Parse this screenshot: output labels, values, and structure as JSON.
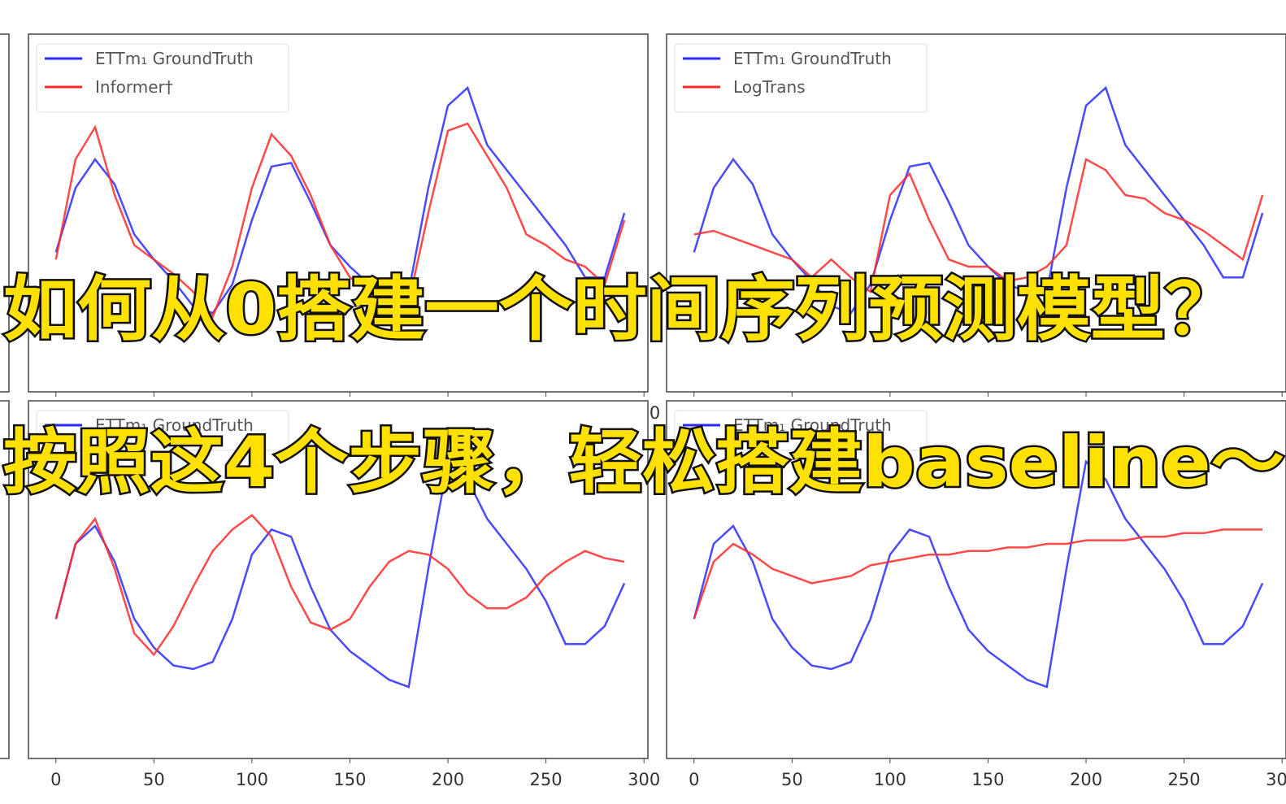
{
  "chart_data": [
    {
      "type": "line",
      "x": [
        0,
        10,
        20,
        30,
        40,
        50,
        60,
        70,
        80,
        90,
        100,
        110,
        120,
        130,
        140,
        150,
        160,
        170,
        180,
        190,
        200,
        210,
        220,
        230,
        240,
        250,
        260,
        270,
        280,
        290
      ],
      "xlim": [
        -14,
        302
      ],
      "xticks": [
        0,
        50,
        100,
        150,
        200,
        250,
        300
      ],
      "ylim": [
        0,
        1
      ],
      "series": [
        {
          "name": "ETTm₁ GroundTruth",
          "color": "#2a2aff",
          "values": [
            0.39,
            0.57,
            0.65,
            0.58,
            0.44,
            0.37,
            0.31,
            0.24,
            0.22,
            0.3,
            0.48,
            0.63,
            0.64,
            0.53,
            0.41,
            0.35,
            0.3,
            0.28,
            0.28,
            0.57,
            0.8,
            0.85,
            0.69,
            0.62,
            0.55,
            0.48,
            0.41,
            0.32,
            0.32,
            0.5
          ]
        },
        {
          "name": "Informer†",
          "color": "#ff2a2a",
          "values": [
            0.37,
            0.65,
            0.74,
            0.55,
            0.41,
            0.37,
            0.33,
            0.28,
            0.21,
            0.35,
            0.57,
            0.72,
            0.66,
            0.55,
            0.41,
            0.32,
            0.28,
            0.23,
            0.25,
            0.5,
            0.73,
            0.75,
            0.66,
            0.57,
            0.44,
            0.41,
            0.37,
            0.35,
            0.3,
            0.48
          ]
        }
      ]
    },
    {
      "type": "line",
      "x": [
        0,
        10,
        20,
        30,
        40,
        50,
        60,
        70,
        80,
        90,
        100,
        110,
        120,
        130,
        140,
        150,
        160,
        170,
        180,
        190,
        200,
        210,
        220,
        230,
        240,
        250,
        260,
        270,
        280,
        290
      ],
      "xlim": [
        -14,
        302
      ],
      "xticks": [
        0,
        50,
        100,
        150,
        200,
        250,
        300
      ],
      "ylim": [
        0,
        1
      ],
      "series": [
        {
          "name": "ETTm₁ GroundTruth",
          "color": "#2a2aff",
          "values": [
            0.39,
            0.57,
            0.65,
            0.58,
            0.44,
            0.37,
            0.31,
            0.24,
            0.22,
            0.3,
            0.48,
            0.63,
            0.64,
            0.53,
            0.41,
            0.35,
            0.3,
            0.28,
            0.28,
            0.57,
            0.8,
            0.85,
            0.69,
            0.62,
            0.55,
            0.48,
            0.41,
            0.32,
            0.32,
            0.5
          ]
        },
        {
          "name": "LogTrans",
          "color": "#ff2a2a",
          "values": [
            0.44,
            0.45,
            0.43,
            0.41,
            0.39,
            0.37,
            0.32,
            0.37,
            0.32,
            0.28,
            0.55,
            0.61,
            0.48,
            0.37,
            0.35,
            0.35,
            0.31,
            0.32,
            0.35,
            0.41,
            0.65,
            0.62,
            0.55,
            0.54,
            0.5,
            0.48,
            0.45,
            0.41,
            0.37,
            0.55
          ]
        }
      ]
    },
    {
      "type": "line",
      "x": [
        0,
        10,
        20,
        30,
        40,
        50,
        60,
        70,
        80,
        90,
        100,
        110,
        120,
        130,
        140,
        150,
        160,
        170,
        180,
        190,
        200,
        210,
        220,
        230,
        240,
        250,
        260,
        270,
        280,
        290
      ],
      "xlim": [
        -14,
        302
      ],
      "xticks": [
        0,
        50,
        100,
        150,
        200,
        250,
        300
      ],
      "ylim": [
        0,
        1
      ],
      "series": [
        {
          "name": "ETTm₁ GroundTruth",
          "color": "#2a2aff",
          "values": [
            0.39,
            0.6,
            0.65,
            0.55,
            0.39,
            0.31,
            0.26,
            0.25,
            0.27,
            0.39,
            0.57,
            0.64,
            0.62,
            0.48,
            0.36,
            0.3,
            0.26,
            0.22,
            0.2,
            0.53,
            0.83,
            0.78,
            0.67,
            0.6,
            0.53,
            0.44,
            0.32,
            0.32,
            0.37,
            0.49
          ]
        },
        {
          "color": "#ff2a2a",
          "values": [
            0.39,
            0.6,
            0.67,
            0.53,
            0.35,
            0.29,
            0.37,
            0.48,
            0.58,
            0.64,
            0.68,
            0.62,
            0.48,
            0.38,
            0.36,
            0.39,
            0.48,
            0.55,
            0.58,
            0.57,
            0.53,
            0.46,
            0.42,
            0.42,
            0.45,
            0.51,
            0.55,
            0.58,
            0.56,
            0.55
          ]
        }
      ]
    },
    {
      "type": "line",
      "x": [
        0,
        10,
        20,
        30,
        40,
        50,
        60,
        70,
        80,
        90,
        100,
        110,
        120,
        130,
        140,
        150,
        160,
        170,
        180,
        190,
        200,
        210,
        220,
        230,
        240,
        250,
        260,
        270,
        280,
        290
      ],
      "xlim": [
        -14,
        302
      ],
      "xticks": [
        0,
        50,
        100,
        150,
        200,
        250,
        300
      ],
      "ylim": [
        0,
        1
      ],
      "series": [
        {
          "name": "ETTm₁ GroundTruth",
          "color": "#2a2aff",
          "values": [
            0.39,
            0.6,
            0.65,
            0.55,
            0.39,
            0.31,
            0.26,
            0.25,
            0.27,
            0.39,
            0.57,
            0.64,
            0.62,
            0.48,
            0.36,
            0.3,
            0.26,
            0.22,
            0.2,
            0.53,
            0.83,
            0.78,
            0.67,
            0.6,
            0.53,
            0.44,
            0.32,
            0.32,
            0.37,
            0.49
          ]
        },
        {
          "color": "#ff2a2a",
          "values": [
            0.39,
            0.55,
            0.6,
            0.57,
            0.53,
            0.51,
            0.49,
            0.5,
            0.51,
            0.54,
            0.55,
            0.56,
            0.57,
            0.57,
            0.58,
            0.58,
            0.59,
            0.59,
            0.6,
            0.6,
            0.61,
            0.61,
            0.61,
            0.62,
            0.62,
            0.63,
            0.63,
            0.64,
            0.64,
            0.64
          ]
        }
      ]
    }
  ],
  "overlay": {
    "line1": "如何从0搭建一个时间序列预测模型？",
    "line2": "按照这4个步骤，轻松搭建baseline～"
  }
}
